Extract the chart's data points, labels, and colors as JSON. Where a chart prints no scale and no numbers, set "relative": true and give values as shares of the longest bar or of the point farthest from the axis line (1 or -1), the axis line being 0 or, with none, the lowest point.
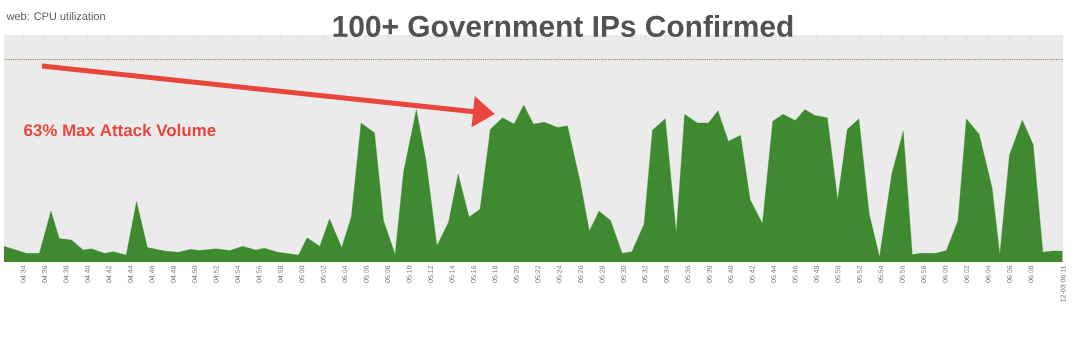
{
  "chart_data": {
    "type": "area",
    "title": "100+ Government IPs Confirmed",
    "relative": true,
    "grid": "x",
    "annotations": [
      "web: CPU utilization",
      "63% Max Attack Volume"
    ],
    "xlim": [
      4.537,
      6.1833
    ],
    "xticks": [
      {
        "value": 4.5667,
        "label": "04:34"
      },
      {
        "value": 4.6,
        "label": "04:36"
      },
      {
        "value": 4.6333,
        "label": "04:38"
      },
      {
        "value": 4.6667,
        "label": "04:40"
      },
      {
        "value": 4.7,
        "label": "04:42"
      },
      {
        "value": 4.7333,
        "label": "04:44"
      },
      {
        "value": 4.7667,
        "label": "04:46"
      },
      {
        "value": 4.8,
        "label": "04:48"
      },
      {
        "value": 4.8333,
        "label": "04:50"
      },
      {
        "value": 4.8667,
        "label": "04:52"
      },
      {
        "value": 4.9,
        "label": "04:54"
      },
      {
        "value": 4.9333,
        "label": "04:56"
      },
      {
        "value": 4.9667,
        "label": "04:58"
      },
      {
        "value": 5,
        "label": "05:00"
      },
      {
        "value": 5.0333,
        "label": "05:02"
      },
      {
        "value": 5.0667,
        "label": "05:04"
      },
      {
        "value": 5.1,
        "label": "05:06"
      },
      {
        "value": 5.1333,
        "label": "05:08"
      },
      {
        "value": 5.1667,
        "label": "05:10"
      },
      {
        "value": 5.2,
        "label": "05:12"
      },
      {
        "value": 5.2333,
        "label": "05:14"
      },
      {
        "value": 5.2667,
        "label": "05:16"
      },
      {
        "value": 5.3,
        "label": "05:18"
      },
      {
        "value": 5.3333,
        "label": "05:20"
      },
      {
        "value": 5.3667,
        "label": "05:22"
      },
      {
        "value": 5.4,
        "label": "05:24"
      },
      {
        "value": 5.4333,
        "label": "05:26"
      },
      {
        "value": 5.4667,
        "label": "05:28"
      },
      {
        "value": 5.5,
        "label": "05:30"
      },
      {
        "value": 5.5333,
        "label": "05:32"
      },
      {
        "value": 5.5667,
        "label": "05:34"
      },
      {
        "value": 5.6,
        "label": "05:36"
      },
      {
        "value": 5.6333,
        "label": "05:38"
      },
      {
        "value": 5.6667,
        "label": "05:40"
      },
      {
        "value": 5.7,
        "label": "05:42"
      },
      {
        "value": 5.7333,
        "label": "05:44"
      },
      {
        "value": 5.7667,
        "label": "05:46"
      },
      {
        "value": 5.8,
        "label": "05:48"
      },
      {
        "value": 5.8333,
        "label": "05:50"
      },
      {
        "value": 5.8667,
        "label": "05:52"
      },
      {
        "value": 5.9,
        "label": "05:54"
      },
      {
        "value": 5.9333,
        "label": "05:56"
      },
      {
        "value": 5.9667,
        "label": "05:58"
      },
      {
        "value": 6,
        "label": "06:00"
      },
      {
        "value": 6.0333,
        "label": "06:02"
      },
      {
        "value": 6.0667,
        "label": "06:04"
      },
      {
        "value": 6.1,
        "label": "06:06"
      },
      {
        "value": 6.1333,
        "label": "06:08"
      },
      {
        "value": 6.1833,
        "label": "12-03 06:11"
      }
    ],
    "ref_lines": [
      {
        "axis": "y",
        "value": 1.29,
        "color": "#a08050",
        "line_style": "dotted"
      }
    ],
    "series": [
      {
        "color": "#3f8a30",
        "x": [
          4.537,
          4.572,
          4.592,
          4.61,
          4.623,
          4.642,
          4.66,
          4.673,
          4.693,
          4.707,
          4.727,
          4.743,
          4.76,
          4.787,
          4.808,
          4.827,
          4.84,
          4.867,
          4.888,
          4.908,
          4.928,
          4.942,
          4.963,
          4.995,
          5.008,
          5.028,
          5.043,
          5.062,
          5.077,
          5.092,
          5.113,
          5.127,
          5.145,
          5.158,
          5.178,
          5.193,
          5.21,
          5.228,
          5.243,
          5.26,
          5.277,
          5.293,
          5.312,
          5.33,
          5.345,
          5.36,
          5.377,
          5.398,
          5.413,
          5.433,
          5.447,
          5.462,
          5.48,
          5.498,
          5.513,
          5.532,
          5.545,
          5.565,
          5.582,
          5.595,
          5.615,
          5.632,
          5.647,
          5.663,
          5.682,
          5.697,
          5.716,
          5.732,
          5.748,
          5.767,
          5.782,
          5.798,
          5.817,
          5.833,
          5.848,
          5.866,
          5.882,
          5.898,
          5.917,
          5.935,
          5.949,
          5.962,
          5.985,
          6.002,
          6.02,
          6.033,
          6.053,
          6.073,
          6.085,
          6.1,
          6.12,
          6.137,
          6.152,
          6.167,
          6.182
        ],
        "values": [
          0.1,
          0.055,
          0.055,
          0.325,
          0.15,
          0.14,
          0.077,
          0.084,
          0.055,
          0.066,
          0.044,
          0.385,
          0.092,
          0.07,
          0.062,
          0.081,
          0.073,
          0.084,
          0.073,
          0.1,
          0.077,
          0.088,
          0.062,
          0.044,
          0.154,
          0.1,
          0.275,
          0.092,
          0.29,
          0.886,
          0.824,
          0.264,
          0.048,
          0.571,
          0.971,
          0.648,
          0.103,
          0.253,
          0.56,
          0.286,
          0.336,
          0.846,
          0.919,
          0.879,
          1.0,
          0.879,
          0.89,
          0.857,
          0.868,
          0.505,
          0.198,
          0.325,
          0.264,
          0.055,
          0.066,
          0.242,
          0.84,
          0.912,
          0.187,
          0.941,
          0.886,
          0.886,
          0.963,
          0.769,
          0.807,
          0.396,
          0.246,
          0.897,
          0.941,
          0.901,
          0.971,
          0.934,
          0.919,
          0.396,
          0.846,
          0.912,
          0.308,
          0.033,
          0.56,
          0.835,
          0.048,
          0.055,
          0.055,
          0.073,
          0.264,
          0.912,
          0.813,
          0.473,
          0.048,
          0.681,
          0.905,
          0.747,
          0.062,
          0.07,
          0.07
        ]
      }
    ]
  }
}
